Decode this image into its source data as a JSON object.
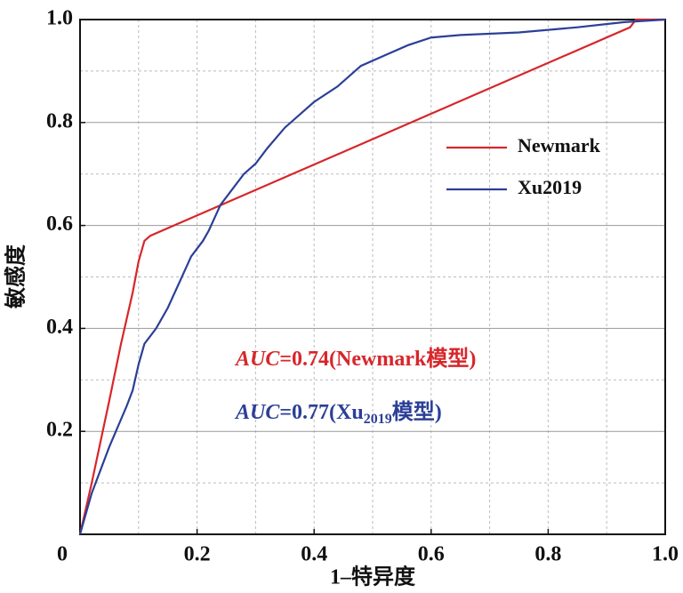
{
  "chart_data": {
    "type": "line",
    "xlabel": "1–特异度",
    "ylabel": "敏感度",
    "xlim": [
      0,
      1
    ],
    "ylim": [
      0,
      1
    ],
    "xticks": [
      0,
      0.2,
      0.4,
      0.6,
      0.8,
      {
        "value": 1,
        "label": "1.0"
      }
    ],
    "yticks": [
      0.2,
      0.4,
      0.6,
      0.8,
      {
        "value": 1,
        "label": "1.0"
      }
    ],
    "minor_ticks": [
      0.1,
      0.3,
      0.5,
      0.7,
      0.9
    ],
    "grid": true,
    "legend": "upper right",
    "series": [
      {
        "name": "Newmark",
        "color": "#d7262b",
        "x": [
          0,
          0.02,
          0.05,
          0.07,
          0.09,
          0.1,
          0.11,
          0.12,
          0.94,
          0.95,
          1
        ],
        "values": [
          0,
          0.1,
          0.26,
          0.37,
          0.47,
          0.53,
          0.57,
          0.58,
          0.985,
          1,
          1
        ]
      },
      {
        "name": "Xu2019",
        "color": "#2b3f97",
        "x": [
          0,
          0.02,
          0.05,
          0.08,
          0.09,
          0.1,
          0.11,
          0.13,
          0.15,
          0.17,
          0.19,
          0.21,
          0.22,
          0.24,
          0.26,
          0.28,
          0.3,
          0.32,
          0.35,
          0.38,
          0.4,
          0.44,
          0.48,
          0.52,
          0.56,
          0.6,
          0.65,
          0.75,
          0.85,
          0.93,
          1
        ],
        "values": [
          0,
          0.08,
          0.17,
          0.25,
          0.28,
          0.33,
          0.37,
          0.4,
          0.44,
          0.49,
          0.54,
          0.57,
          0.59,
          0.64,
          0.67,
          0.7,
          0.72,
          0.75,
          0.79,
          0.82,
          0.84,
          0.87,
          0.91,
          0.93,
          0.95,
          0.965,
          0.97,
          0.975,
          0.985,
          0.995,
          1
        ]
      }
    ],
    "annotations": [
      {
        "color": "#d7262b",
        "parts": [
          {
            "text": "AUC",
            "style": "italic"
          },
          {
            "text": "=0.74(Newmark模型)"
          }
        ]
      },
      {
        "color": "#2b3f97",
        "parts": [
          {
            "text": "AUC",
            "style": "italic"
          },
          {
            "text": "=0.77(Xu"
          },
          {
            "text": "2019",
            "style": "sub"
          },
          {
            "text": "模型)"
          }
        ]
      }
    ]
  }
}
